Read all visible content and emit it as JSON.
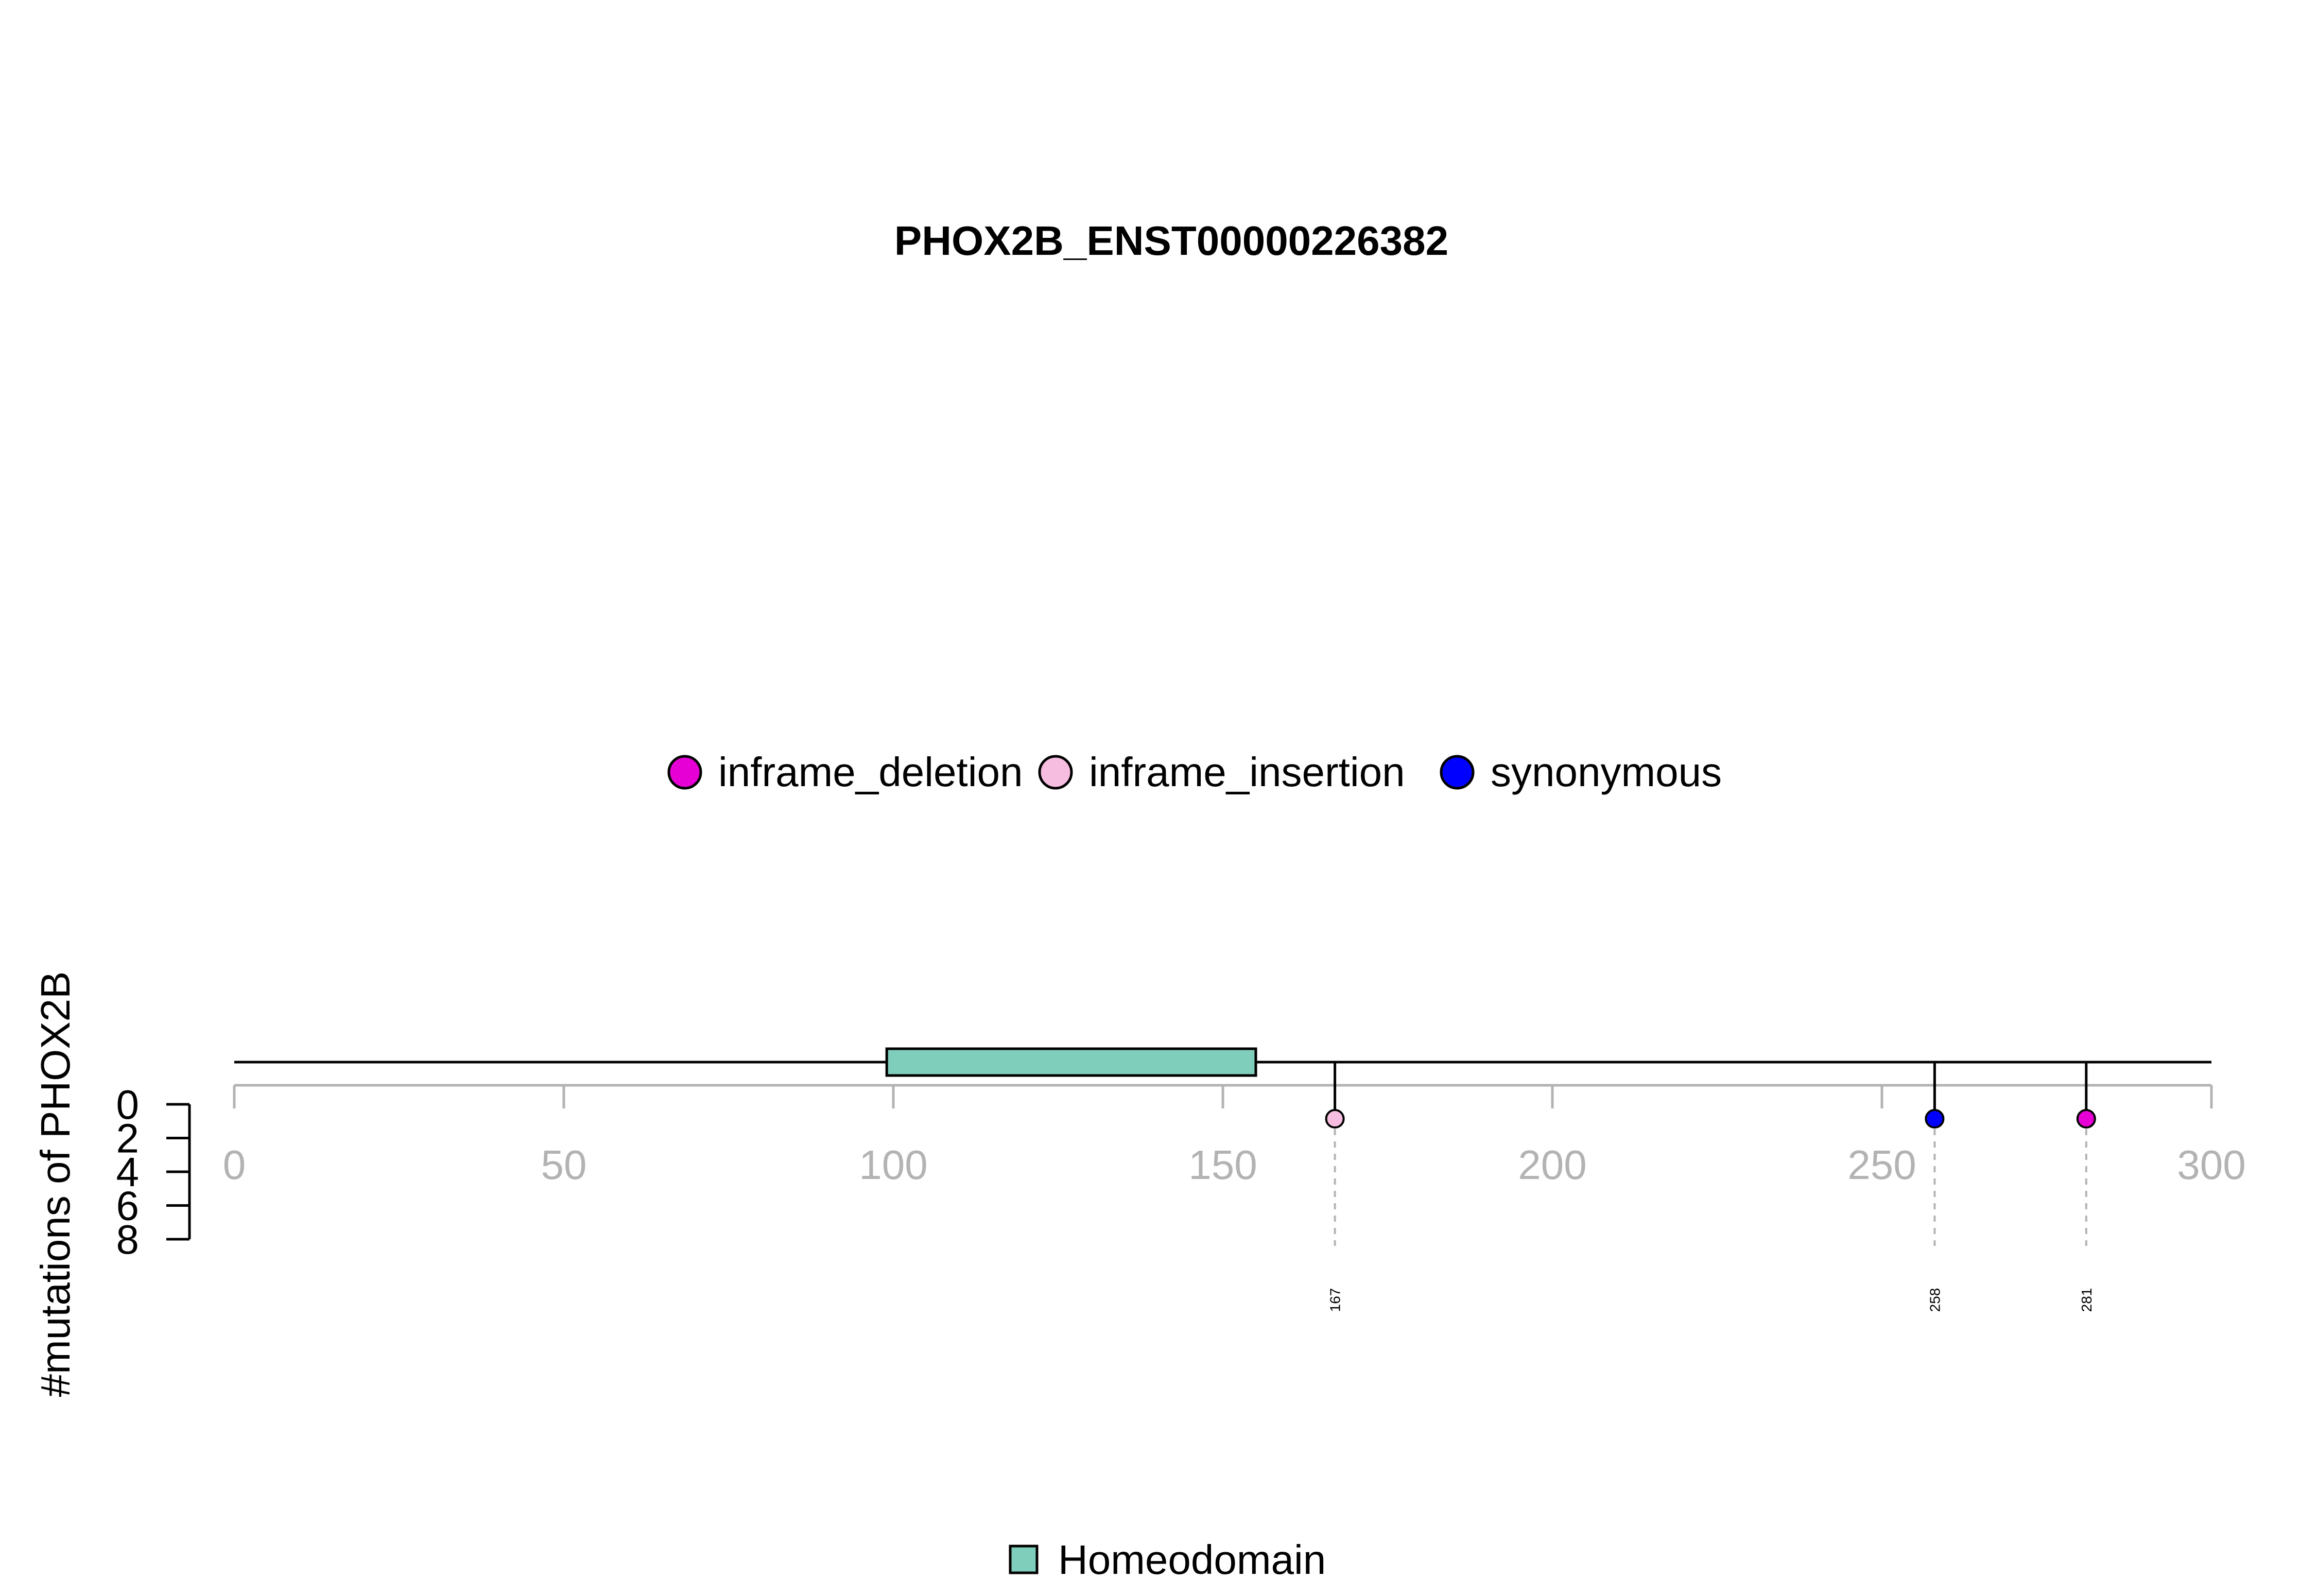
{
  "chart_data": {
    "type": "lollipop",
    "title": "PHOX2B_ENST00000226382",
    "ylabel": "#mutations of PHOX2B",
    "x_range": [
      0,
      300
    ],
    "x_ticks": [
      "0",
      "50",
      "100",
      "150",
      "200",
      "250",
      "300"
    ],
    "y_ticks": [
      "0",
      "2",
      "4",
      "6",
      "8"
    ],
    "y_range": [
      0,
      8
    ],
    "protein_length": 300,
    "domains": [
      {
        "name": "Homeodomain",
        "start": 99,
        "end": 155,
        "color": "#7fcdbb"
      }
    ],
    "mutation_types": [
      {
        "name": "inframe_deletion",
        "color": "#e600d6"
      },
      {
        "name": "inframe_insertion",
        "color": "#f7bde0"
      },
      {
        "name": "synonymous",
        "color": "#0000ff"
      }
    ],
    "mutations": [
      {
        "position": 167,
        "label": "167",
        "count": 1,
        "type": "inframe_insertion"
      },
      {
        "position": 258,
        "label": "258",
        "count": 1,
        "type": "synonymous"
      },
      {
        "position": 281,
        "label": "281",
        "count": 1,
        "type": "inframe_deletion"
      }
    ]
  }
}
